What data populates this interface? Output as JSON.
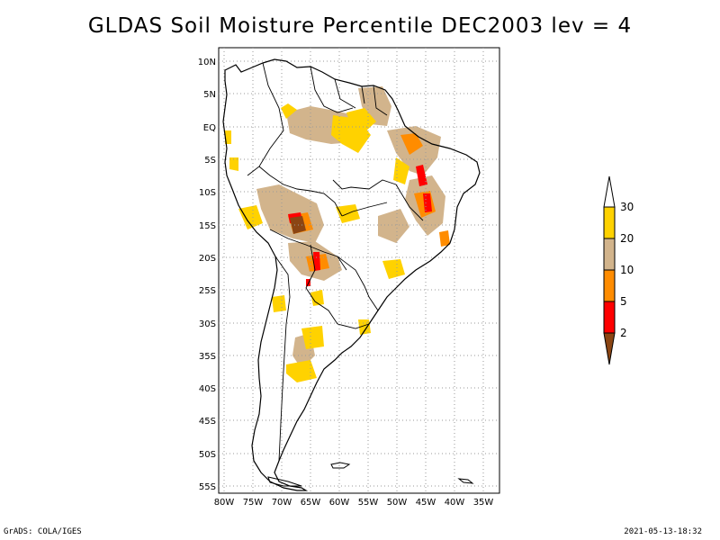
{
  "title": "GLDAS Soil Moisture Percentile DEC2003 lev = 4",
  "footer": {
    "left": "GrADS: COLA/IGES",
    "right": "2021-05-13-18:32"
  },
  "map": {
    "region": "South America",
    "lat_labels": [
      "10N",
      "5N",
      "EQ",
      "5S",
      "10S",
      "15S",
      "20S",
      "25S",
      "30S",
      "35S",
      "40S",
      "45S",
      "50S",
      "55S"
    ],
    "lon_labels": [
      "80W",
      "75W",
      "70W",
      "65W",
      "60W",
      "55W",
      "50W",
      "45W",
      "40W",
      "35W"
    ]
  },
  "legend": {
    "labels": [
      "30",
      "20",
      "10",
      "5",
      "2"
    ],
    "colors": {
      "gt30": "#ffffff",
      "c20_30": "#ffd200",
      "c10_20": "#d2b48c",
      "c5_10": "#ff8c00",
      "c2_5": "#ff0000",
      "lt2": "#8b4513"
    }
  }
}
